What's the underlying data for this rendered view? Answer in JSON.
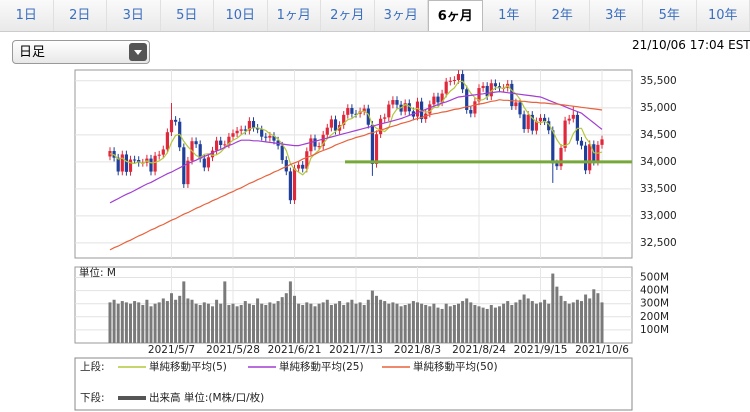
{
  "tabs": [
    "1日",
    "2日",
    "3日",
    "5日",
    "10日",
    "1ヶ月",
    "2ヶ月",
    "3ヶ月",
    "6ヶ月",
    "1年",
    "2年",
    "3年",
    "5年",
    "10年"
  ],
  "dropdown": "日足",
  "timestamp": "21/10/06 17:04 EST",
  "chart_data": {
    "type": "candlestick",
    "up_color": "#e0283c",
    "down_color": "#1f3f9a",
    "ylim": [
      32220,
      35700
    ],
    "yticks": [
      {
        "value": 32500,
        "label": "32,500"
      },
      {
        "value": 33000,
        "label": "33,000"
      },
      {
        "value": 33500,
        "label": "33,500"
      },
      {
        "value": 34000,
        "label": "34,000"
      },
      {
        "value": 34500,
        "label": "34,500"
      },
      {
        "value": 35000,
        "label": "35,000"
      },
      {
        "value": 35500,
        "label": "35,500"
      }
    ],
    "hline": {
      "value": 34000,
      "color": "#76a83a"
    },
    "categories": [
      null,
      null,
      null,
      null,
      null,
      null,
      null,
      null,
      null,
      null,
      null,
      null,
      null,
      null,
      null,
      "2021/5/7",
      null,
      null,
      null,
      null,
      null,
      null,
      null,
      null,
      null,
      null,
      null,
      null,
      null,
      null,
      "2021/5/28",
      null,
      null,
      null,
      null,
      null,
      null,
      null,
      null,
      null,
      null,
      null,
      null,
      null,
      null,
      "2021/6/21",
      null,
      null,
      null,
      null,
      null,
      null,
      null,
      null,
      null,
      null,
      null,
      null,
      null,
      null,
      "2021/7/13",
      null,
      null,
      null,
      null,
      null,
      null,
      null,
      null,
      null,
      null,
      null,
      null,
      null,
      null,
      "2021/8/3",
      null,
      null,
      null,
      null,
      null,
      null,
      null,
      null,
      null,
      null,
      null,
      null,
      null,
      null,
      "2021/8/24",
      null,
      null,
      null,
      null,
      null,
      null,
      null,
      null,
      null,
      null,
      null,
      null,
      null,
      null,
      "2021/9/15",
      null,
      null,
      null,
      null,
      null,
      null,
      null,
      null,
      null,
      null,
      null,
      null,
      null,
      null,
      "2021/10/6"
    ],
    "open": [
      34100,
      34200,
      34077,
      33821,
      34137,
      33815,
      34043,
      34034,
      33981,
      33984,
      34060,
      33820,
      34113,
      34133,
      34230,
      34548,
      34777,
      34742,
      34269,
      33587,
      34021,
      34382,
      34327,
      34060,
      33896,
      34084,
      34208,
      34393,
      34312,
      34323,
      34465,
      34529,
      34575,
      34600,
      34577,
      34756,
      34630,
      34599,
      34466,
      34447,
      34480,
      34393,
      34299,
      34033,
      33823,
      33290,
      33876,
      33945,
      33874,
      34196,
      34434,
      34283,
      34292,
      34502,
      34633,
      34786,
      34577,
      34681,
      34870,
      34996,
      34889,
      34888,
      34933,
      34987,
      34687,
      33962,
      34512,
      34798,
      34823,
      35061,
      35144,
      35058,
      34930,
      35085,
      34935,
      34838,
      35116,
      34792,
      34893,
      35064,
      35208,
      35101,
      35264,
      35484,
      35499,
      35515,
      35625,
      35343,
      34960,
      34894,
      35120,
      35366,
      35405,
      35213,
      35455,
      35399,
      35361,
      35369,
      35443,
      35031,
      35100,
      34879,
      34607,
      34869,
      34578,
      34751,
      34814,
      34751,
      34584,
      33970,
      33919,
      34258,
      34764,
      34798,
      34869,
      34390,
      34300,
      33843,
      34326,
      34002,
      34314
    ],
    "high": [
      34270,
      34270,
      34147,
      34207,
      34207,
      34113,
      34113,
      34104,
      34054,
      34130,
      34130,
      34183,
      34203,
      34300,
      34618,
      35090,
      34847,
      34812,
      34339,
      34091,
      34452,
      34452,
      34397,
      34130,
      34154,
      34278,
      34463,
      34463,
      34393,
      34535,
      34599,
      34645,
      34670,
      34670,
      34826,
      34826,
      34700,
      34669,
      34536,
      34550,
      34550,
      34463,
      34369,
      34103,
      33893,
      33946,
      34015,
      34015,
      34266,
      34504,
      34504,
      34362,
      34572,
      34703,
      34856,
      34856,
      34751,
      34940,
      35066,
      35066,
      34959,
      35003,
      35057,
      35057,
      34757,
      34582,
      34868,
      34893,
      35131,
      35214,
      35214,
      35128,
      35155,
      35155,
      35005,
      35186,
      35186,
      34963,
      35134,
      35278,
      35278,
      35334,
      35554,
      35569,
      35585,
      35695,
      35695,
      35413,
      35030,
      35190,
      35436,
      35475,
      35475,
      35525,
      35525,
      35469,
      35439,
      35513,
      35513,
      35170,
      35170,
      34949,
      34939,
      34939,
      34821,
      34884,
      34884,
      34821,
      34654,
      34040,
      34328,
      34834,
      34868,
      35030,
      34939,
      34460,
      34370,
      34396,
      34396,
      34384,
      34486
    ],
    "low": [
      34030,
      34007,
      33751,
      33751,
      33745,
      33745,
      33964,
      33911,
      33911,
      33914,
      33750,
      33750,
      34043,
      34063,
      34160,
      34478,
      34672,
      34199,
      33517,
      33517,
      33951,
      34257,
      33990,
      33826,
      33826,
      34014,
      34138,
      34242,
      34242,
      34253,
      34395,
      34459,
      34505,
      34507,
      34507,
      34560,
      34529,
      34396,
      34377,
      34377,
      34323,
      34229,
      33963,
      33753,
      33220,
      33220,
      33806,
      33804,
      33804,
      34126,
      34213,
      34213,
      34222,
      34432,
      34563,
      34507,
      34507,
      34611,
      34800,
      34819,
      34818,
      34818,
      34863,
      34617,
      33740,
      33892,
      34442,
      34728,
      34753,
      34991,
      34988,
      34860,
      34860,
      34865,
      34768,
      34768,
      34722,
      34722,
      34823,
      34994,
      35031,
      35031,
      35194,
      35414,
      35429,
      35445,
      35273,
      34890,
      34824,
      34824,
      35050,
      35296,
      35143,
      35143,
      35329,
      35291,
      35291,
      35299,
      34961,
      34961,
      34809,
      34537,
      34537,
      34508,
      34508,
      34681,
      34681,
      34514,
      33610,
      33849,
      33849,
      34188,
      34694,
      34728,
      34320,
      34230,
      33773,
      33773,
      33932,
      33932,
      34244
    ],
    "close": [
      34200,
      34077,
      33821,
      34137,
      33815,
      34043,
      34034,
      33981,
      33984,
      34060,
      33820,
      34113,
      34133,
      34230,
      34548,
      34777,
      34742,
      34269,
      33587,
      34021,
      34382,
      34327,
      34060,
      33896,
      34084,
      34208,
      34393,
      34312,
      34323,
      34465,
      34529,
      34575,
      34600,
      34577,
      34756,
      34630,
      34599,
      34466,
      34447,
      34480,
      34393,
      34299,
      34033,
      33823,
      33290,
      33876,
      33945,
      33874,
      34196,
      34434,
      34283,
      34292,
      34502,
      34633,
      34786,
      34577,
      34681,
      34870,
      34996,
      34889,
      34888,
      34933,
      34987,
      34687,
      33962,
      34512,
      34798,
      34823,
      35061,
      35144,
      35058,
      34930,
      35085,
      34935,
      34838,
      35116,
      34792,
      34893,
      35064,
      35208,
      35101,
      35264,
      35484,
      35499,
      35515,
      35625,
      35343,
      34960,
      34894,
      35120,
      35366,
      35405,
      35213,
      35455,
      35399,
      35361,
      35369,
      35443,
      35031,
      35100,
      34879,
      34607,
      34869,
      34578,
      34751,
      34814,
      34751,
      34584,
      33970,
      33919,
      34258,
      34764,
      34798,
      34869,
      34390,
      34300,
      33843,
      34326,
      34002,
      34314,
      34416
    ],
    "legend_upper_label": "上段:",
    "legend_lower_label": "下段:",
    "series": [
      {
        "name": "単純移動平均(5)",
        "color": "#b3c83a",
        "values": [
          34150,
          34130,
          34050,
          34070,
          34010,
          33980,
          33970,
          34000,
          33970,
          34020,
          33980,
          33990,
          34020,
          34070,
          34170,
          34360,
          34490,
          34510,
          34380,
          34280,
          34200,
          34120,
          34080,
          34140,
          34150,
          34120,
          34130,
          34180,
          34260,
          34340,
          34400,
          34440,
          34500,
          34550,
          34610,
          34630,
          34630,
          34610,
          34580,
          34520,
          34480,
          34420,
          34330,
          34210,
          33970,
          33860,
          33810,
          33760,
          33840,
          34070,
          34150,
          34220,
          34340,
          34430,
          34500,
          34560,
          34640,
          34710,
          34780,
          34800,
          34860,
          34920,
          34940,
          34880,
          34690,
          34620,
          34590,
          34560,
          34630,
          34870,
          34980,
          35000,
          35060,
          35030,
          34970,
          34990,
          34940,
          34920,
          34930,
          35010,
          35010,
          35110,
          35220,
          35310,
          35370,
          35480,
          35490,
          35390,
          35270,
          35190,
          35140,
          35150,
          35200,
          35310,
          35370,
          35370,
          35360,
          35410,
          35320,
          35260,
          35160,
          35010,
          34900,
          34810,
          34740,
          34720,
          34750,
          34700,
          34570,
          34410,
          34300,
          34300,
          34340,
          34520,
          34620,
          34620,
          34450,
          34350,
          34170,
          34160,
          34180
        ]
      },
      {
        "name": "単純移動平均(25)",
        "color": "#a23ed2",
        "values": [
          33240,
          33280,
          33320,
          33360,
          33400,
          33430,
          33470,
          33510,
          33550,
          33590,
          33620,
          33660,
          33700,
          33740,
          33780,
          33810,
          33850,
          33890,
          33930,
          33970,
          34000,
          34030,
          34070,
          34100,
          34130,
          34170,
          34200,
          34230,
          34270,
          34300,
          34330,
          34370,
          34400,
          34400,
          34400,
          34390,
          34390,
          34380,
          34370,
          34360,
          34350,
          34340,
          34330,
          34320,
          34310,
          34300,
          34300,
          34320,
          34340,
          34360,
          34380,
          34400,
          34420,
          34440,
          34460,
          34480,
          34500,
          34520,
          34540,
          34560,
          34580,
          34600,
          34620,
          34640,
          34660,
          34680,
          34700,
          34720,
          34740,
          34760,
          34780,
          34800,
          34830,
          34860,
          34890,
          34910,
          34940,
          34970,
          35000,
          35030,
          35060,
          35090,
          35110,
          35140,
          35170,
          35200,
          35210,
          35220,
          35230,
          35240,
          35250,
          35260,
          35270,
          35280,
          35290,
          35300,
          35290,
          35280,
          35270,
          35260,
          35250,
          35240,
          35230,
          35220,
          35210,
          35200,
          35170,
          35140,
          35110,
          35080,
          35050,
          35020,
          34990,
          34960,
          34930,
          34900,
          34840,
          34780,
          34720,
          34660,
          34600
        ]
      },
      {
        "name": "単純移動平均(50)",
        "color": "#e8623c",
        "values": [
          32370,
          32410,
          32440,
          32480,
          32520,
          32550,
          32590,
          32630,
          32660,
          32700,
          32740,
          32770,
          32810,
          32840,
          32880,
          32920,
          32950,
          32990,
          33030,
          33060,
          33100,
          33140,
          33170,
          33210,
          33240,
          33280,
          33310,
          33350,
          33380,
          33420,
          33450,
          33490,
          33520,
          33560,
          33600,
          33630,
          33670,
          33700,
          33740,
          33770,
          33810,
          33840,
          33880,
          33910,
          33950,
          33980,
          34010,
          34050,
          34080,
          34110,
          34140,
          34180,
          34210,
          34240,
          34270,
          34310,
          34340,
          34370,
          34400,
          34420,
          34450,
          34470,
          34490,
          34520,
          34540,
          34560,
          34590,
          34610,
          34640,
          34660,
          34680,
          34710,
          34730,
          34750,
          34780,
          34800,
          34820,
          34850,
          34870,
          34890,
          34900,
          34920,
          34930,
          34950,
          34970,
          34980,
          35000,
          35020,
          35030,
          35050,
          35070,
          35080,
          35100,
          35120,
          35130,
          35150,
          35140,
          35140,
          35130,
          35130,
          35120,
          35120,
          35110,
          35100,
          35100,
          35090,
          35090,
          35080,
          35070,
          35070,
          35060,
          35050,
          35040,
          35030,
          35020,
          35010,
          35000,
          34990,
          34980,
          34970,
          34960
        ]
      }
    ],
    "volume": {
      "name": "出来高 単位:(M株/口/枚)",
      "unit_label": "単位: M",
      "color": "#7a7a7a",
      "ylim": [
        0,
        580
      ],
      "yticks": [
        {
          "value": 100,
          "label": "100M"
        },
        {
          "value": 200,
          "label": "200M"
        },
        {
          "value": 300,
          "label": "300M"
        },
        {
          "value": 400,
          "label": "400M"
        },
        {
          "value": 500,
          "label": "500M"
        }
      ],
      "values": [
        310,
        330,
        300,
        320,
        310,
        300,
        320,
        310,
        290,
        330,
        280,
        300,
        310,
        340,
        320,
        380,
        330,
        360,
        470,
        340,
        330,
        300,
        290,
        310,
        300,
        280,
        330,
        300,
        470,
        290,
        300,
        280,
        290,
        320,
        300,
        290,
        340,
        300,
        290,
        310,
        300,
        320,
        350,
        380,
        470,
        360,
        300,
        290,
        310,
        300,
        280,
        300,
        310,
        330,
        290,
        300,
        320,
        290,
        310,
        330,
        300,
        310,
        290,
        330,
        400,
        360,
        330,
        320,
        300,
        310,
        300,
        280,
        290,
        300,
        320,
        310,
        300,
        290,
        280,
        300,
        270,
        260,
        300,
        280,
        290,
        300,
        320,
        340,
        310,
        290,
        280,
        270,
        260,
        290,
        270,
        280,
        300,
        320,
        290,
        310,
        330,
        370,
        340,
        320,
        300,
        310,
        330,
        300,
        530,
        430,
        360,
        320,
        300,
        310,
        330,
        320,
        370,
        340,
        410,
        380,
        310
      ]
    }
  }
}
